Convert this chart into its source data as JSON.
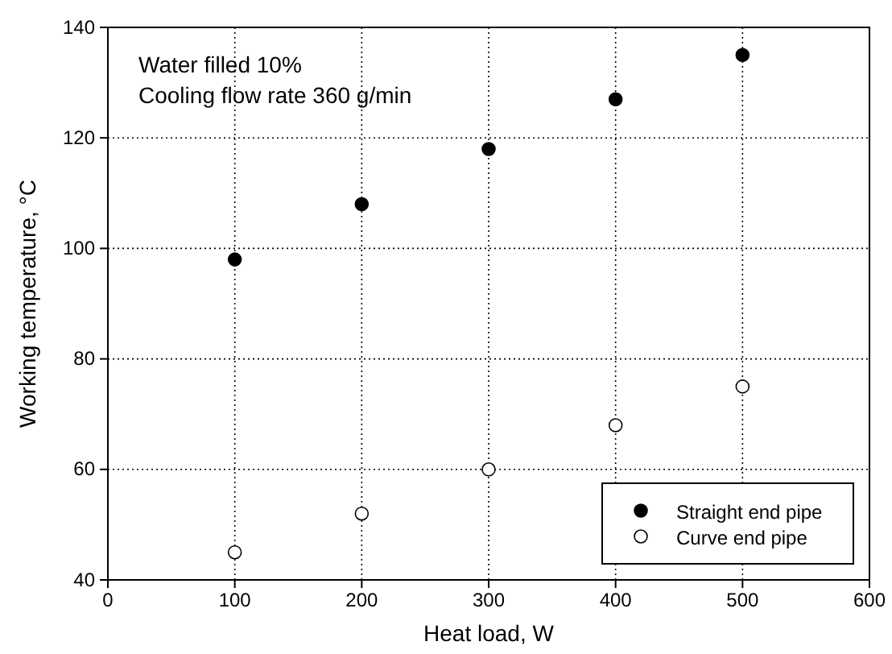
{
  "chart_data": {
    "type": "scatter",
    "xlabel": "Heat load, W",
    "ylabel": "Working temperature, °C",
    "annotations": [
      "Water filled 10%",
      "Cooling flow rate 360 g/min"
    ],
    "x": [
      100,
      200,
      300,
      400,
      500
    ],
    "series": [
      {
        "name": "Straight end pipe",
        "color": "#000000",
        "values": [
          98,
          108,
          118,
          127,
          135
        ]
      },
      {
        "name": "Curve end pipe",
        "color": "#ffffff",
        "values": [
          45,
          52,
          60,
          68,
          75
        ]
      }
    ],
    "xlim": [
      0,
      600
    ],
    "xticks": [
      0,
      100,
      200,
      300,
      400,
      500,
      600
    ],
    "ylim": [
      40,
      140
    ],
    "yticks": [
      40,
      60,
      80,
      100,
      120,
      140
    ],
    "grid": true,
    "legend": "bottom right",
    "marker": "circle"
  }
}
